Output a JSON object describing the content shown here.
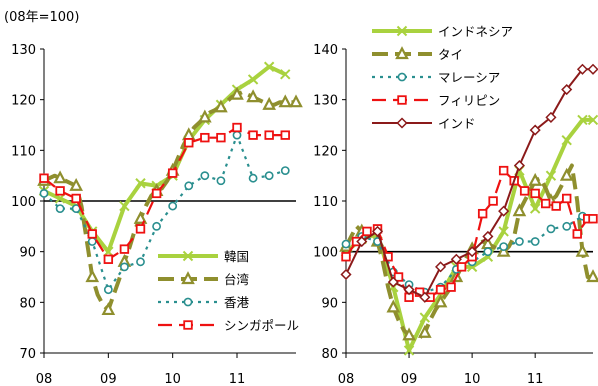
{
  "unit_label": "(08年=100)",
  "chart_data": [
    {
      "type": "line",
      "ylim": [
        70,
        130
      ],
      "yticks": [
        70,
        80,
        90,
        100,
        110,
        120,
        130
      ],
      "xlim": [
        2008.0,
        2011.917
      ],
      "xticks": [
        2008,
        2009,
        2010,
        2011
      ],
      "xtick_labels": [
        "08",
        "09",
        "10",
        "11"
      ],
      "reference_line": 100,
      "legend_position": "bottom-right",
      "series": [
        {
          "name": "韓国",
          "color": "#a9d23f",
          "dash": "",
          "marker": "x",
          "width": 4,
          "x": [
            2008.0,
            2008.25,
            2008.5,
            2008.75,
            2009.0,
            2009.25,
            2009.5,
            2009.75,
            2010.0,
            2010.25,
            2010.5,
            2010.75,
            2011.0,
            2011.25,
            2011.5,
            2011.75
          ],
          "y": [
            102,
            100.5,
            99,
            94,
            90,
            99,
            103.5,
            103,
            105,
            112,
            116,
            119,
            122,
            124,
            126.5,
            125
          ]
        },
        {
          "name": "台湾",
          "color": "#8f8f2e",
          "dash": "16,7",
          "marker": "triangle",
          "width": 4,
          "x": [
            2008.0,
            2008.083,
            2008.167,
            2008.25,
            2008.333,
            2008.417,
            2008.5,
            2008.583,
            2008.667,
            2008.75,
            2008.833,
            2008.917,
            2009.0,
            2009.083,
            2009.167,
            2009.25,
            2009.333,
            2009.417,
            2009.5,
            2009.583,
            2009.667,
            2009.75,
            2009.833,
            2009.917,
            2010.0,
            2010.083,
            2010.167,
            2010.25,
            2010.333,
            2010.417,
            2010.5,
            2010.583,
            2010.667,
            2010.75,
            2010.833,
            2010.917,
            2011.0,
            2011.083,
            2011.167,
            2011.25,
            2011.333,
            2011.417,
            2011.5,
            2011.583,
            2011.667,
            2011.75,
            2011.833,
            2011.917
          ],
          "y": [
            104,
            104.5,
            105,
            104.5,
            104,
            103.5,
            103,
            99,
            92,
            85,
            81.5,
            79.5,
            78.5,
            81.5,
            84.5,
            88,
            91,
            94.5,
            96.5,
            99,
            101,
            102,
            102.5,
            104,
            106,
            108.5,
            111,
            113,
            114.5,
            115.5,
            116.5,
            117.5,
            118,
            118.5,
            119.5,
            120.5,
            121,
            121.5,
            121,
            120.5,
            120,
            119.5,
            119,
            119,
            119.5,
            119.5,
            119.5,
            119.5
          ]
        },
        {
          "name": "香港",
          "color": "#2a8f8f",
          "dash": "3,5",
          "marker": "circle",
          "width": 2.2,
          "x": [
            2008.0,
            2008.25,
            2008.5,
            2008.75,
            2009.0,
            2009.25,
            2009.5,
            2009.75,
            2010.0,
            2010.25,
            2010.5,
            2010.75,
            2011.0,
            2011.25,
            2011.5,
            2011.75
          ],
          "y": [
            101.5,
            98.5,
            98.5,
            92,
            82.5,
            87,
            88,
            95,
            99,
            103,
            105,
            104,
            113,
            104.5,
            105,
            106
          ]
        },
        {
          "name": "シンガポール",
          "color": "#ee1111",
          "dash": "14,7",
          "marker": "square",
          "width": 2.2,
          "x": [
            2008.0,
            2008.25,
            2008.5,
            2008.75,
            2009.0,
            2009.25,
            2009.5,
            2009.75,
            2010.0,
            2010.25,
            2010.5,
            2010.75,
            2011.0,
            2011.25,
            2011.5,
            2011.75
          ],
          "y": [
            104.5,
            102,
            100.5,
            93.5,
            88.5,
            90.5,
            94.5,
            101.5,
            105.5,
            111.5,
            112.5,
            112.5,
            114.5,
            113,
            113,
            113
          ]
        }
      ]
    },
    {
      "type": "line",
      "ylim": [
        80,
        140
      ],
      "yticks": [
        80,
        90,
        100,
        110,
        120,
        130,
        140
      ],
      "xlim": [
        2008.0,
        2011.917
      ],
      "xticks": [
        2008,
        2009,
        2010,
        2011
      ],
      "xtick_labels": [
        "08",
        "09",
        "10",
        "11"
      ],
      "reference_line": 100,
      "legend_position": "top-left",
      "series": [
        {
          "name": "インドネシア",
          "color": "#a9d23f",
          "dash": "",
          "marker": "x",
          "width": 4,
          "x": [
            2008.0,
            2008.25,
            2008.5,
            2008.75,
            2009.0,
            2009.25,
            2009.5,
            2009.75,
            2010.0,
            2010.25,
            2010.5,
            2010.75,
            2011.0,
            2011.25,
            2011.5,
            2011.75,
            2011.917
          ],
          "y": [
            100,
            102.5,
            103.5,
            93,
            80.5,
            87,
            91.5,
            97,
            97,
            99,
            104,
            116,
            108.5,
            115,
            122,
            126,
            126
          ]
        },
        {
          "name": "タイ",
          "color": "#8f8f2e",
          "dash": "16,7",
          "marker": "triangle",
          "width": 4,
          "x": [
            2008.0,
            2008.083,
            2008.167,
            2008.25,
            2008.333,
            2008.417,
            2008.5,
            2008.583,
            2008.667,
            2008.75,
            2008.833,
            2008.917,
            2009.0,
            2009.083,
            2009.167,
            2009.25,
            2009.333,
            2009.417,
            2009.5,
            2009.583,
            2009.667,
            2009.75,
            2009.833,
            2009.917,
            2010.0,
            2010.083,
            2010.167,
            2010.25,
            2010.333,
            2010.417,
            2010.5,
            2010.583,
            2010.667,
            2010.75,
            2010.833,
            2010.917,
            2011.0,
            2011.083,
            2011.167,
            2011.25,
            2011.333,
            2011.417,
            2011.5,
            2011.583,
            2011.667,
            2011.75,
            2011.833,
            2011.917
          ],
          "y": [
            101,
            103,
            105,
            104,
            103,
            102.5,
            102,
            98,
            93,
            89,
            86.5,
            84.5,
            83.5,
            83,
            83,
            84,
            86.5,
            88.5,
            90,
            91.5,
            93,
            95,
            97,
            99,
            100.5,
            101.5,
            102,
            101.5,
            101,
            100.5,
            100,
            101,
            103,
            108,
            110,
            112,
            114,
            114.5,
            112.5,
            110,
            111,
            113,
            115,
            117,
            110,
            100,
            95,
            95
          ]
        },
        {
          "name": "マレーシア",
          "color": "#2a8f8f",
          "dash": "3,5",
          "marker": "circle",
          "width": 2.2,
          "x": [
            2008.0,
            2008.25,
            2008.5,
            2008.75,
            2009.0,
            2009.25,
            2009.5,
            2009.75,
            2010.0,
            2010.25,
            2010.5,
            2010.75,
            2011.0,
            2011.25,
            2011.5,
            2011.75
          ],
          "y": [
            101.5,
            103,
            102,
            96,
            93.5,
            92,
            93,
            96.5,
            98,
            100,
            101,
            102,
            102,
            104.5,
            105,
            107
          ]
        },
        {
          "name": "フィリピン",
          "color": "#ee1111",
          "dash": "14,7",
          "marker": "square",
          "width": 2.2,
          "x": [
            2008.0,
            2008.167,
            2008.333,
            2008.5,
            2008.667,
            2008.833,
            2009.0,
            2009.167,
            2009.333,
            2009.5,
            2009.667,
            2009.833,
            2010.0,
            2010.167,
            2010.333,
            2010.5,
            2010.667,
            2010.833,
            2011.0,
            2011.167,
            2011.333,
            2011.5,
            2011.667,
            2011.833,
            2011.917
          ],
          "y": [
            99,
            102,
            104,
            104.5,
            99,
            95,
            91,
            92,
            91,
            92.5,
            93,
            97,
            99,
            107.5,
            110,
            116,
            114,
            112,
            111.5,
            109.5,
            109,
            110.5,
            103.5,
            106.5,
            106.5
          ]
        },
        {
          "name": "インド",
          "color": "#8b1a1a",
          "dash": "",
          "marker": "diamond",
          "width": 2,
          "x": [
            2008.0,
            2008.25,
            2008.5,
            2008.75,
            2009.0,
            2009.25,
            2009.5,
            2009.75,
            2010.0,
            2010.25,
            2010.5,
            2010.75,
            2011.0,
            2011.25,
            2011.5,
            2011.75,
            2011.917
          ],
          "y": [
            95.5,
            102,
            104,
            94,
            92.5,
            91,
            97,
            98.5,
            100,
            103,
            108,
            117,
            124,
            126.5,
            132,
            136,
            136
          ]
        }
      ]
    }
  ]
}
